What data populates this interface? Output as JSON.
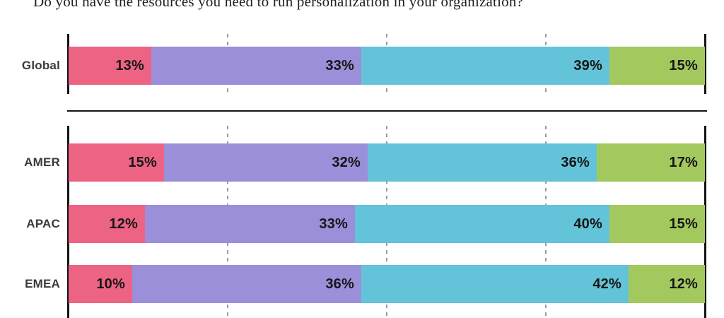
{
  "title": "Do you have the resources you need to run personalization in your organization?",
  "chart_data": {
    "type": "bar",
    "stacked": true,
    "orientation": "horizontal",
    "value_unit": "%",
    "axis_range_percent": [
      0,
      100
    ],
    "gridlines_percent": [
      25,
      50,
      75
    ],
    "legend": "none (no legend visible in image)",
    "segment_colors": [
      "#ED6384",
      "#9B8FD9",
      "#63C3D8",
      "#A3C95E"
    ],
    "sections": [
      {
        "name": "global",
        "rows": [
          {
            "label": "Global",
            "values": [
              13,
              33,
              39,
              15
            ]
          }
        ]
      },
      {
        "name": "regions",
        "rows": [
          {
            "label": "AMER",
            "values": [
              15,
              32,
              36,
              17
            ]
          },
          {
            "label": "APAC",
            "values": [
              12,
              33,
              40,
              15
            ]
          },
          {
            "label": "EMEA",
            "values": [
              10,
              36,
              42,
              12
            ]
          }
        ]
      }
    ]
  },
  "styles": {
    "background": "#ffffff",
    "axis_color": "#141414",
    "gridline_color": "#9a9a9a",
    "divider_color": "#141414",
    "row_label_color": "#3b3b3b",
    "bar_label_color": "#161616",
    "title_color": "#1f1f1f"
  }
}
